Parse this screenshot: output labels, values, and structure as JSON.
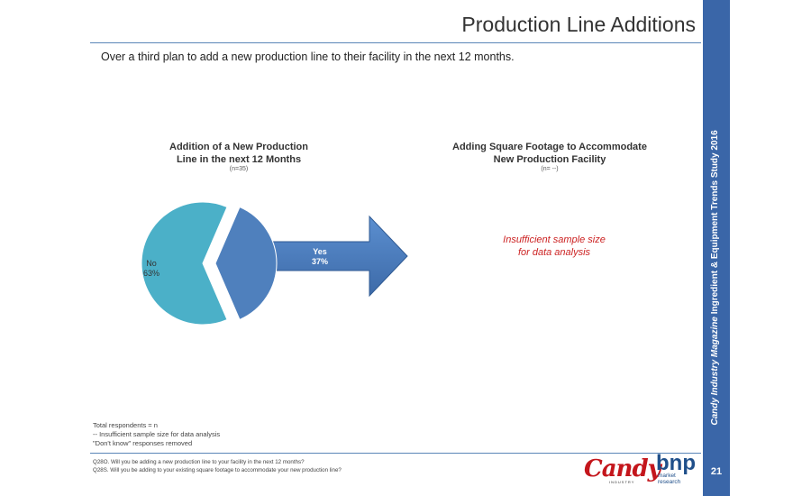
{
  "page": {
    "title": "Production Line Additions",
    "subtitle": "Over a third plan to add a new production line to their facility in the next 12 months.",
    "sidebar_prefix": "Candy Industry Magazine",
    "sidebar_suffix": "Ingredient & Equipment Trends Study 2016",
    "page_number": "21"
  },
  "chart_data": [
    {
      "type": "pie",
      "title_line1": "Addition of a New Production",
      "title_line2": "Line in the next 12 Months",
      "n": "(n=35)",
      "slices": [
        {
          "name": "No",
          "value": 63,
          "label": "63%",
          "color": "#4bb0c8"
        },
        {
          "name": "Yes",
          "value": 37,
          "label": "37%",
          "color": "#4f80bd",
          "exploded": true
        }
      ]
    },
    {
      "type": "table",
      "title_line1": "Adding Square Footage to Accommodate",
      "title_line2": "New Production Facility",
      "n": "(n= --)",
      "message_line1": "Insufficient sample size",
      "message_line2": "for data analysis"
    }
  ],
  "footnotes": [
    "Total respondents = n",
    "--  Insufficient sample size  for data analysis",
    "\"Don't know\" responses removed"
  ],
  "questions": [
    "Q28O.  Will you be adding a new production line to your facility in the next 12 months?",
    "Q28S.  Will you be adding to your existing square footage to accommodate your new production line?"
  ],
  "logos": {
    "candy": "Candy",
    "candy_sub": "INDUSTRY",
    "bnp": "bnp",
    "bnp_sub_1": "market",
    "bnp_sub_2": "research"
  },
  "colors": {
    "accent": "#3a66a8",
    "arrow": "#4f7fbe",
    "warning_text": "#cc2222"
  }
}
